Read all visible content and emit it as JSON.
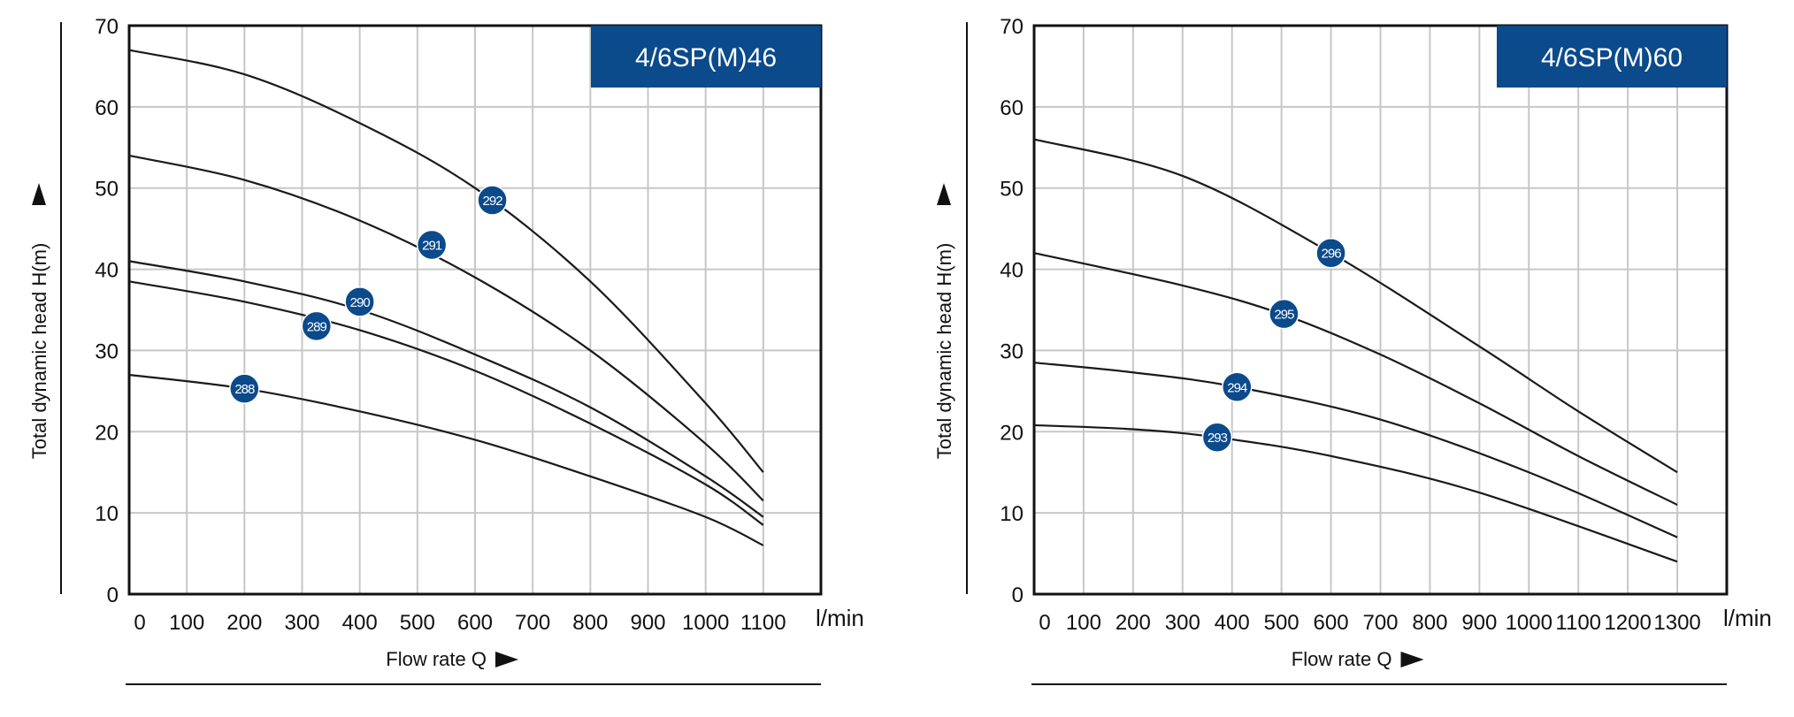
{
  "chart_data": [
    {
      "type": "line",
      "title": "4/6SP(M)46",
      "xlabel": "Flow rate Q",
      "ylabel": "Total dynamic head H(m)",
      "unit": "l/min",
      "xlim": [
        0,
        1200
      ],
      "ylim": [
        0,
        70
      ],
      "x_ticks": [
        0,
        100,
        200,
        300,
        400,
        500,
        600,
        700,
        800,
        900,
        1000,
        1100
      ],
      "x_tick_labels": [
        "0",
        "100",
        "200",
        "300",
        "400",
        "500",
        "600",
        "700",
        "800",
        "900",
        "1000",
        "1100"
      ],
      "y_ticks": [
        0,
        10,
        20,
        30,
        40,
        50,
        60,
        70
      ],
      "y_tick_labels": [
        "0",
        "10",
        "20",
        "30",
        "40",
        "50",
        "60",
        "70"
      ],
      "series": [
        {
          "name": "292",
          "x": [
            0,
            200,
            400,
            600,
            800,
            1000,
            1100
          ],
          "y": [
            67,
            64,
            58,
            50,
            38.5,
            23.5,
            15
          ],
          "marker_x": 630,
          "marker_y": 48.5
        },
        {
          "name": "291",
          "x": [
            0,
            200,
            400,
            600,
            800,
            1000,
            1100
          ],
          "y": [
            54,
            51,
            46,
            39,
            30,
            18.5,
            11.5
          ],
          "marker_x": 525,
          "marker_y": 43
        },
        {
          "name": "290",
          "x": [
            0,
            200,
            400,
            600,
            800,
            1000,
            1100
          ],
          "y": [
            41,
            38.5,
            35,
            29.5,
            23,
            14.5,
            9.5
          ],
          "marker_x": 400,
          "marker_y": 36
        },
        {
          "name": "289",
          "x": [
            0,
            200,
            400,
            600,
            800,
            1000,
            1100
          ],
          "y": [
            38.5,
            36,
            32.5,
            27.5,
            21,
            13.5,
            8.5
          ],
          "marker_x": 325,
          "marker_y": 33
        },
        {
          "name": "288",
          "x": [
            0,
            200,
            400,
            600,
            800,
            1000,
            1100
          ],
          "y": [
            27,
            25.3,
            22.5,
            19,
            14.5,
            9.5,
            6
          ],
          "marker_x": 200,
          "marker_y": 25.3
        }
      ]
    },
    {
      "type": "line",
      "title": "4/6SP(M)60",
      "xlabel": "Flow rate Q",
      "ylabel": "Total dynamic head H(m)",
      "unit": "l/min",
      "xlim": [
        0,
        1400
      ],
      "ylim": [
        0,
        70
      ],
      "x_ticks": [
        0,
        100,
        200,
        300,
        400,
        500,
        600,
        700,
        800,
        900,
        1000,
        1100,
        1200,
        1300
      ],
      "x_tick_labels": [
        "0",
        "100",
        "200",
        "300",
        "400",
        "500",
        "600",
        "700",
        "800",
        "900",
        "1000",
        "1100",
        "1200",
        "1300"
      ],
      "y_ticks": [
        0,
        10,
        20,
        30,
        40,
        50,
        60,
        70
      ],
      "y_tick_labels": [
        "0",
        "10",
        "20",
        "30",
        "40",
        "50",
        "60",
        "70"
      ],
      "series": [
        {
          "name": "296",
          "x": [
            0,
            300,
            600,
            900,
            1100,
            1300
          ],
          "y": [
            56,
            51.5,
            42,
            30.5,
            22.5,
            15
          ],
          "marker_x": 600,
          "marker_y": 42
        },
        {
          "name": "295",
          "x": [
            0,
            300,
            500,
            700,
            900,
            1100,
            1300
          ],
          "y": [
            42,
            38,
            34.5,
            29.5,
            23.5,
            17,
            11
          ],
          "marker_x": 505,
          "marker_y": 34.5
        },
        {
          "name": "294",
          "x": [
            0,
            200,
            410,
            700,
            1000,
            1300
          ],
          "y": [
            28.5,
            27.3,
            25.5,
            21.5,
            15,
            7
          ],
          "marker_x": 410,
          "marker_y": 25.5
        },
        {
          "name": "293",
          "x": [
            0,
            200,
            370,
            600,
            900,
            1300
          ],
          "y": [
            20.8,
            20.3,
            19.3,
            17,
            12.5,
            4
          ],
          "marker_x": 370,
          "marker_y": 19.3
        }
      ]
    }
  ],
  "colors": {
    "badge": "#0b4a8b",
    "title_box": "#0b4a8b",
    "grid": "#c7c7c7",
    "axis": "#111111",
    "curve": "#1a1a1a"
  }
}
